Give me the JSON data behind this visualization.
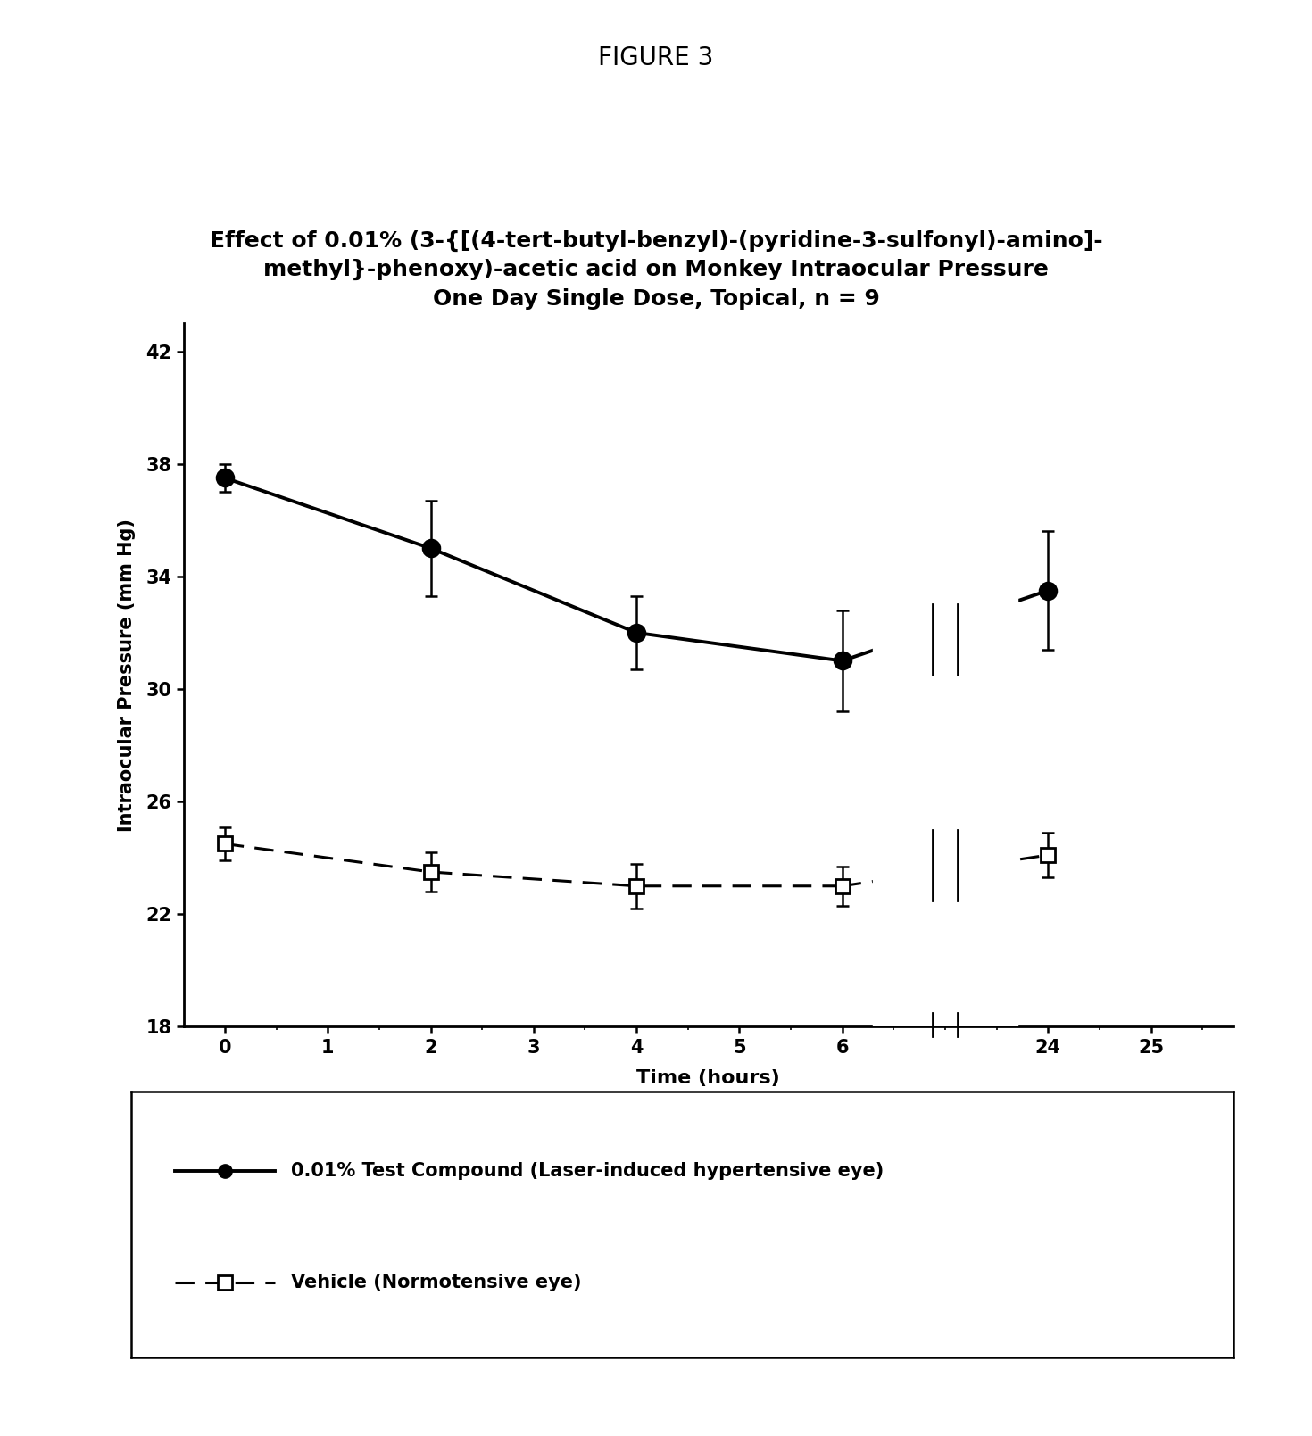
{
  "figure_label": "FIGURE 3",
  "chart_title_line1": "Effect of 0.01% (3-{[(4-tert-butyl-benzyl)-(pyridine-3-sulfonyl)-amino]-",
  "chart_title_line2": "methyl}-phenoxy)-acetic acid on Monkey Intraocular Pressure",
  "chart_title_line3": "One Day Single Dose, Topical, n = 9",
  "xlabel": "Time (hours)",
  "ylabel": "Intraocular Pressure (mm Hg)",
  "series1_label": "0.01% Test Compound (Laser-induced hypertensive eye)",
  "series2_label": "Vehicle (Normotensive eye)",
  "series1_x_real": [
    0,
    2,
    4,
    6,
    24
  ],
  "series1_y": [
    37.5,
    35.0,
    32.0,
    31.0,
    33.5
  ],
  "series1_yerr": [
    0.5,
    1.7,
    1.3,
    1.8,
    2.1
  ],
  "series2_x_real": [
    0,
    2,
    4,
    6,
    24
  ],
  "series2_y": [
    24.5,
    23.5,
    23.0,
    23.0,
    24.1
  ],
  "series2_yerr": [
    0.6,
    0.7,
    0.8,
    0.7,
    0.8
  ],
  "ylim": [
    18,
    43
  ],
  "yticks": [
    18,
    22,
    26,
    30,
    34,
    38,
    42
  ],
  "xtick_positions": [
    0,
    1,
    2,
    3,
    4,
    5,
    6,
    8,
    9
  ],
  "xtick_labels": [
    "0",
    "1",
    "2",
    "3",
    "4",
    "5",
    "6",
    "24",
    "25"
  ],
  "xlim_disp": [
    -0.4,
    9.8
  ],
  "break_disp_x": 7.0,
  "background_color": "#ffffff",
  "figure_label_fontsize": 20,
  "title_fontsize": 18,
  "tick_fontsize": 15,
  "axis_label_fontsize": 16,
  "legend_fontsize": 15
}
